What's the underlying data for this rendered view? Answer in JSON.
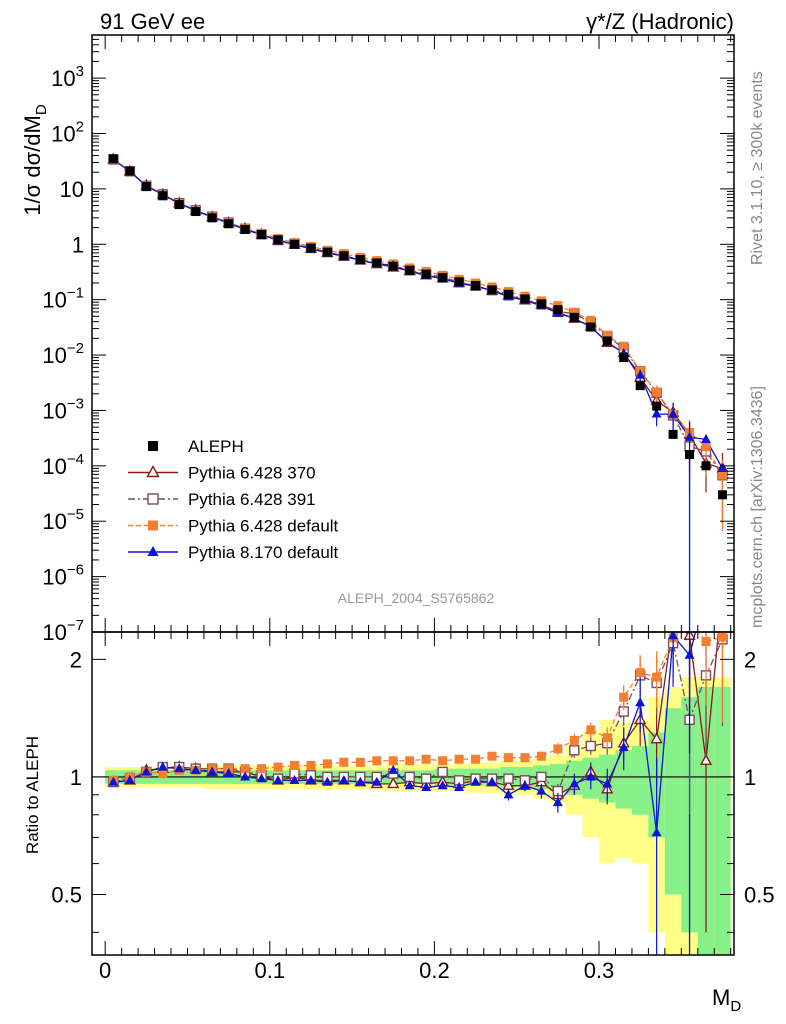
{
  "header": {
    "left": "91 GeV ee",
    "right": "γ*/Z (Hadronic)"
  },
  "side_labels": {
    "rivet": "Rivet 3.1.10, ≥ 300k events",
    "mcplots": "mcplots.cern.ch [arXiv:1306.3436]"
  },
  "watermark": "ALEPH_2004_S5765862",
  "chart_data": {
    "type": "scatter",
    "title": "",
    "xlabel": "M",
    "xlabel_sub": "D",
    "ylabel": "1/σ dσ/dM",
    "ylabel_sub": "D",
    "ratio_ylabel": "Ratio to ALEPH",
    "xlim": [
      -0.008,
      0.382
    ],
    "ylim": [
      1e-07,
      6000
    ],
    "yscale": "log",
    "ratio_ylim": [
      0.35,
      2.35
    ],
    "ratio_yscale": "log",
    "legend_position": "bottom-left",
    "x_ticks": [
      0,
      0.1,
      0.2,
      0.3
    ],
    "x_tick_labels": [
      "0",
      "0.1",
      "0.2",
      "0.3"
    ],
    "y_ticks": [
      {
        "v": 1000,
        "base": "10",
        "exp": "3"
      },
      {
        "v": 100,
        "base": "10",
        "exp": "2"
      },
      {
        "v": 10,
        "base": "10",
        "exp": ""
      },
      {
        "v": 1,
        "base": "1",
        "exp": ""
      },
      {
        "v": 0.1,
        "base": "10",
        "exp": "−1"
      },
      {
        "v": 0.01,
        "base": "10",
        "exp": "−2"
      },
      {
        "v": 0.001,
        "base": "10",
        "exp": "−3"
      },
      {
        "v": 0.0001,
        "base": "10",
        "exp": "−4"
      },
      {
        "v": 1e-05,
        "base": "10",
        "exp": "−5"
      },
      {
        "v": 1e-06,
        "base": "10",
        "exp": "−6"
      },
      {
        "v": 1e-07,
        "base": "10",
        "exp": "−7"
      }
    ],
    "ratio_ticks": [
      {
        "v": 0.5,
        "label": "0.5"
      },
      {
        "v": 1,
        "label": "1"
      },
      {
        "v": 2,
        "label": "2"
      }
    ],
    "x": [
      0.005,
      0.015,
      0.025,
      0.035,
      0.045,
      0.055,
      0.065,
      0.075,
      0.085,
      0.095,
      0.105,
      0.115,
      0.125,
      0.135,
      0.145,
      0.155,
      0.165,
      0.175,
      0.185,
      0.195,
      0.205,
      0.215,
      0.225,
      0.235,
      0.245,
      0.255,
      0.265,
      0.275,
      0.285,
      0.295,
      0.305,
      0.315,
      0.325,
      0.335,
      0.345,
      0.355,
      0.365,
      0.375
    ],
    "bin_width": 0.01,
    "data": {
      "name": "ALEPH",
      "color": "#000000",
      "y": [
        35,
        21,
        11,
        7.5,
        5.2,
        3.9,
        3.0,
        2.35,
        1.85,
        1.5,
        1.2,
        1.0,
        0.85,
        0.72,
        0.62,
        0.53,
        0.46,
        0.4,
        0.34,
        0.29,
        0.25,
        0.21,
        0.18,
        0.15,
        0.125,
        0.103,
        0.084,
        0.066,
        0.048,
        0.032,
        0.018,
        0.009,
        0.0028,
        0.0012,
        0.00037,
        0.00016,
        0.0001,
        3e-05
      ],
      "band_inner": [
        0.04,
        0.04,
        0.04,
        0.04,
        0.04,
        0.04,
        0.04,
        0.04,
        0.04,
        0.04,
        0.04,
        0.04,
        0.04,
        0.04,
        0.04,
        0.04,
        0.04,
        0.04,
        0.04,
        0.04,
        0.05,
        0.05,
        0.05,
        0.05,
        0.06,
        0.06,
        0.07,
        0.08,
        0.1,
        0.12,
        0.14,
        0.17,
        0.2,
        0.3,
        0.5,
        0.6,
        0.7,
        0.7
      ],
      "band_outer": [
        0.06,
        0.06,
        0.06,
        0.06,
        0.06,
        0.06,
        0.07,
        0.07,
        0.07,
        0.07,
        0.07,
        0.07,
        0.07,
        0.07,
        0.07,
        0.07,
        0.07,
        0.08,
        0.08,
        0.08,
        0.08,
        0.08,
        0.09,
        0.09,
        0.1,
        0.1,
        0.12,
        0.14,
        0.2,
        0.3,
        0.4,
        0.38,
        0.4,
        0.6,
        0.7,
        0.8,
        0.8,
        0.8
      ]
    },
    "series": [
      {
        "name": "Pythia 6.428 370",
        "color": "#8b1a1a",
        "marker": "triangle-open",
        "dash": "",
        "ratio": [
          0.97,
          0.98,
          1.04,
          1.05,
          1.06,
          1.05,
          1.03,
          1.03,
          1.03,
          1.0,
          0.98,
          1.0,
          0.98,
          0.98,
          0.98,
          0.97,
          0.96,
          0.96,
          0.97,
          0.96,
          0.97,
          0.96,
          0.98,
          0.97,
          0.95,
          0.95,
          0.97,
          0.9,
          0.95,
          1.03,
          0.93,
          1.22,
          1.4,
          1.25,
          2.5,
          2.3,
          1.1,
          3.0
        ],
        "ratio_err": [
          0.01,
          0.01,
          0.01,
          0.01,
          0.01,
          0.01,
          0.01,
          0.01,
          0.01,
          0.01,
          0.01,
          0.01,
          0.01,
          0.01,
          0.01,
          0.01,
          0.01,
          0.02,
          0.02,
          0.02,
          0.02,
          0.02,
          0.02,
          0.02,
          0.03,
          0.03,
          0.03,
          0.04,
          0.05,
          0.06,
          0.08,
          0.12,
          0.2,
          0.3,
          0.5,
          0.8,
          0.7,
          0.9
        ]
      },
      {
        "name": "Pythia 6.428 391",
        "color": "#7b4a64",
        "marker": "square-open",
        "dash": "7,3,2,3",
        "ratio": [
          0.97,
          0.99,
          1.03,
          1.06,
          1.06,
          1.05,
          1.05,
          1.05,
          1.03,
          1.01,
          0.99,
          1.02,
          1.01,
          1.0,
          1.0,
          1.0,
          1.0,
          1.02,
          1.0,
          0.99,
          1.03,
          0.98,
          0.99,
          0.99,
          0.99,
          0.98,
          1.0,
          0.92,
          1.17,
          1.2,
          1.22,
          1.47,
          1.82,
          1.74,
          2.2,
          1.4,
          1.82,
          2.25
        ],
        "ratio_err": [
          0.01,
          0.01,
          0.01,
          0.01,
          0.01,
          0.01,
          0.01,
          0.01,
          0.01,
          0.01,
          0.01,
          0.01,
          0.01,
          0.01,
          0.01,
          0.01,
          0.01,
          0.02,
          0.02,
          0.02,
          0.02,
          0.02,
          0.02,
          0.02,
          0.03,
          0.03,
          0.03,
          0.04,
          0.05,
          0.06,
          0.08,
          0.12,
          0.2,
          0.3,
          0.4,
          0.6,
          0.7,
          0.9
        ]
      },
      {
        "name": "Pythia 6.428 default",
        "color": "#f47f30",
        "marker": "square-filled",
        "dash": "5,3",
        "ratio": [
          0.98,
          1.0,
          1.03,
          1.02,
          1.04,
          1.04,
          1.05,
          1.05,
          1.05,
          1.05,
          1.06,
          1.07,
          1.07,
          1.08,
          1.09,
          1.09,
          1.1,
          1.1,
          1.1,
          1.11,
          1.1,
          1.11,
          1.11,
          1.13,
          1.12,
          1.12,
          1.13,
          1.18,
          1.24,
          1.32,
          1.26,
          1.6,
          1.85,
          1.8,
          2.27,
          2.5,
          2.22,
          2.28
        ],
        "ratio_err": [
          0.01,
          0.01,
          0.01,
          0.01,
          0.01,
          0.01,
          0.01,
          0.01,
          0.01,
          0.01,
          0.01,
          0.01,
          0.01,
          0.01,
          0.01,
          0.01,
          0.01,
          0.02,
          0.02,
          0.02,
          0.02,
          0.02,
          0.02,
          0.02,
          0.03,
          0.03,
          0.03,
          0.04,
          0.05,
          0.06,
          0.08,
          0.12,
          0.2,
          0.3,
          0.4,
          0.6,
          0.7,
          0.9
        ]
      },
      {
        "name": "Pythia 8.170 default",
        "color": "#0a14d6",
        "marker": "triangle-filled",
        "dash": "",
        "ratio": [
          0.97,
          0.98,
          1.03,
          1.06,
          1.05,
          1.04,
          1.03,
          1.02,
          1.0,
          0.99,
          0.98,
          0.98,
          0.98,
          0.97,
          0.98,
          0.97,
          0.97,
          1.04,
          0.95,
          0.94,
          0.95,
          0.94,
          0.97,
          0.97,
          0.9,
          0.95,
          0.92,
          0.86,
          0.96,
          1.0,
          0.96,
          1.19,
          1.55,
          0.72,
          2.3,
          2.05,
          3.0,
          3.0
        ],
        "ratio_err": [
          0.01,
          0.01,
          0.01,
          0.01,
          0.01,
          0.01,
          0.01,
          0.01,
          0.01,
          0.01,
          0.01,
          0.01,
          0.01,
          0.01,
          0.01,
          0.01,
          0.01,
          0.02,
          0.02,
          0.02,
          0.02,
          0.02,
          0.02,
          0.02,
          0.03,
          0.03,
          0.04,
          0.05,
          0.06,
          0.07,
          0.09,
          0.15,
          0.25,
          0.4,
          0.6,
          0.9,
          0.0,
          0.0
        ]
      }
    ]
  }
}
